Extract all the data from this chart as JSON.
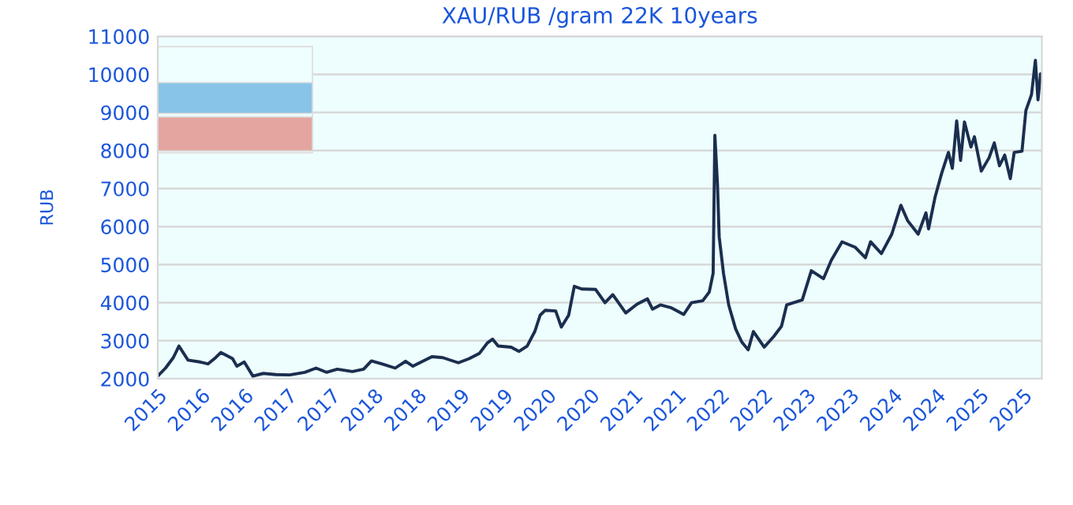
{
  "chart_data": {
    "type": "line",
    "title": "XAU/RUB /gram 22K 10years",
    "ylabel": "RUB",
    "x": [
      2015.5,
      2015.59,
      2015.68,
      2015.745,
      2015.85,
      2015.99,
      2016.08,
      2016.17,
      2016.23,
      2016.365,
      2016.415,
      2016.5,
      2016.6,
      2016.72,
      2016.87,
      2017.025,
      2017.2,
      2017.33,
      2017.45,
      2017.575,
      2017.75,
      2017.88,
      2017.97,
      2018.09,
      2018.245,
      2018.365,
      2018.45,
      2018.67,
      2018.795,
      2018.975,
      2019.1,
      2019.22,
      2019.31,
      2019.37,
      2019.435,
      2019.585,
      2019.675,
      2019.77,
      2019.86,
      2019.92,
      2019.98,
      2020.1,
      2020.165,
      2020.25,
      2020.315,
      2020.4,
      2020.56,
      2020.67,
      2020.76,
      2020.91,
      2021.04,
      2021.16,
      2021.22,
      2021.31,
      2021.43,
      2021.58,
      2021.67,
      2021.8,
      2021.875,
      2021.92,
      2021.94,
      2021.97,
      2021.99,
      2022.04,
      2022.1,
      2022.18,
      2022.25,
      2022.325,
      2022.385,
      2022.51,
      2022.62,
      2022.71,
      2022.77,
      2022.95,
      2023.055,
      2023.195,
      2023.285,
      2023.41,
      2023.56,
      2023.68,
      2023.74,
      2023.865,
      2023.985,
      2024.09,
      2024.17,
      2024.29,
      2024.38,
      2024.41,
      2024.485,
      2024.56,
      2024.64,
      2024.685,
      2024.735,
      2024.78,
      2024.825,
      2024.9,
      2024.94,
      2025.02,
      2025.11,
      2025.17,
      2025.23,
      2025.29,
      2025.355,
      2025.4,
      2025.49,
      2025.535,
      2025.6,
      2025.645,
      2025.675,
      2025.705
    ],
    "series": [
      {
        "color": "#1a2e4f",
        "values": [
          2070,
          2280,
          2555,
          2860,
          2490,
          2440,
          2390,
          2555,
          2690,
          2530,
          2330,
          2440,
          2070,
          2140,
          2110,
          2100,
          2170,
          2280,
          2170,
          2250,
          2190,
          2250,
          2470,
          2390,
          2280,
          2460,
          2330,
          2580,
          2555,
          2420,
          2530,
          2670,
          2940,
          3040,
          2860,
          2830,
          2720,
          2860,
          3250,
          3670,
          3800,
          3780,
          3360,
          3670,
          4430,
          4360,
          4350,
          4000,
          4210,
          3730,
          3960,
          4100,
          3830,
          3940,
          3870,
          3690,
          4000,
          4050,
          4280,
          4770,
          8400,
          7120,
          5730,
          4770,
          3940,
          3310,
          2970,
          2760,
          3240,
          2830,
          3110,
          3380,
          3940,
          4070,
          4840,
          4630,
          5110,
          5600,
          5460,
          5180,
          5600,
          5290,
          5800,
          6560,
          6150,
          5800,
          6360,
          5940,
          6770,
          7390,
          7950,
          7530,
          8780,
          7740,
          8750,
          8090,
          8360,
          7460,
          7810,
          8200,
          7600,
          7880,
          7260,
          7950,
          7980,
          9050,
          9470,
          10370,
          9330,
          10020
        ]
      }
    ],
    "xlim": [
      2015.5,
      2025.72
    ],
    "xticks": [
      {
        "value": 2015.5,
        "label": "2015"
      },
      {
        "value": 2016.0,
        "label": "2016"
      },
      {
        "value": 2016.5,
        "label": "2016"
      },
      {
        "value": 2017.0,
        "label": "2017"
      },
      {
        "value": 2017.5,
        "label": "2017"
      },
      {
        "value": 2018.0,
        "label": "2018"
      },
      {
        "value": 2018.5,
        "label": "2018"
      },
      {
        "value": 2019.0,
        "label": "2019"
      },
      {
        "value": 2019.5,
        "label": "2019"
      },
      {
        "value": 2020.0,
        "label": "2020"
      },
      {
        "value": 2020.5,
        "label": "2020"
      },
      {
        "value": 2021.0,
        "label": "2021"
      },
      {
        "value": 2021.5,
        "label": "2021"
      },
      {
        "value": 2022.0,
        "label": "2022"
      },
      {
        "value": 2022.5,
        "label": "2022"
      },
      {
        "value": 2023.0,
        "label": "2023"
      },
      {
        "value": 2023.5,
        "label": "2023"
      },
      {
        "value": 2024.0,
        "label": "2024"
      },
      {
        "value": 2024.5,
        "label": "2024"
      },
      {
        "value": 2025.0,
        "label": "2025"
      },
      {
        "value": 2025.5,
        "label": "2025"
      }
    ],
    "ylim": [
      2000,
      11000
    ],
    "yticks": [
      2000,
      3000,
      4000,
      5000,
      6000,
      7000,
      8000,
      9000,
      10000,
      11000
    ],
    "grid": "y",
    "marker": "none",
    "line_style": "solid",
    "legend": false
  }
}
